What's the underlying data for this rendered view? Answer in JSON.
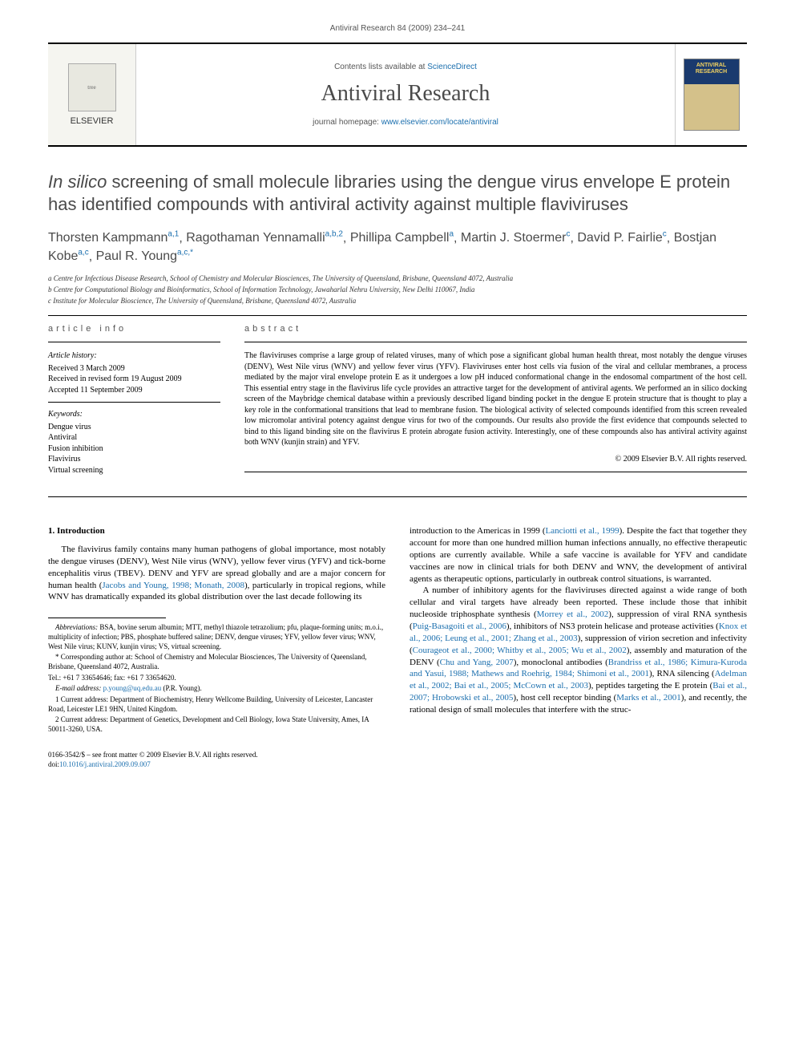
{
  "running_head": "Antiviral Research 84 (2009) 234–241",
  "masthead": {
    "publisher": "ELSEVIER",
    "contents_prefix": "Contents lists available at ",
    "contents_link": "ScienceDirect",
    "journal": "Antiviral Research",
    "homepage_prefix": "journal homepage: ",
    "homepage_url": "www.elsevier.com/locate/antiviral",
    "cover_text": "ANTIVIRAL RESEARCH"
  },
  "title": {
    "italic_lead": "In silico",
    "rest": " screening of small molecule libraries using the dengue virus envelope E protein has identified compounds with antiviral activity against multiple flaviviruses"
  },
  "authors": [
    {
      "name": "Thorsten Kampmann",
      "sup": "a,1"
    },
    {
      "name": "Ragothaman Yennamalli",
      "sup": "a,b,2"
    },
    {
      "name": "Phillipa Campbell",
      "sup": "a"
    },
    {
      "name": "Martin J. Stoermer",
      "sup": "c"
    },
    {
      "name": "David P. Fairlie",
      "sup": "c"
    },
    {
      "name": "Bostjan Kobe",
      "sup": "a,c"
    },
    {
      "name": "Paul R. Young",
      "sup": "a,c,*"
    }
  ],
  "affiliations": [
    "a Centre for Infectious Disease Research, School of Chemistry and Molecular Biosciences, The University of Queensland, Brisbane, Queensland 4072, Australia",
    "b Centre for Computational Biology and Bioinformatics, School of Information Technology, Jawaharlal Nehru University, New Delhi 110067, India",
    "c Institute for Molecular Bioscience, The University of Queensland, Brisbane, Queensland 4072, Australia"
  ],
  "article_info": {
    "heading": "article info",
    "history_label": "Article history:",
    "history": [
      "Received 3 March 2009",
      "Received in revised form 19 August 2009",
      "Accepted 11 September 2009"
    ],
    "keywords_label": "Keywords:",
    "keywords": [
      "Dengue virus",
      "Antiviral",
      "Fusion inhibition",
      "Flavivirus",
      "Virtual screening"
    ]
  },
  "abstract": {
    "heading": "abstract",
    "text": "The flaviviruses comprise a large group of related viruses, many of which pose a significant global human health threat, most notably the dengue viruses (DENV), West Nile virus (WNV) and yellow fever virus (YFV). Flaviviruses enter host cells via fusion of the viral and cellular membranes, a process mediated by the major viral envelope protein E as it undergoes a low pH induced conformational change in the endosomal compartment of the host cell. This essential entry stage in the flavivirus life cycle provides an attractive target for the development of antiviral agents. We performed an in silico docking screen of the Maybridge chemical database within a previously described ligand binding pocket in the dengue E protein structure that is thought to play a key role in the conformational transitions that lead to membrane fusion. The biological activity of selected compounds identified from this screen revealed low micromolar antiviral potency against dengue virus for two of the compounds. Our results also provide the first evidence that compounds selected to bind to this ligand binding site on the flavivirus E protein abrogate fusion activity. Interestingly, one of these compounds also has antiviral activity against both WNV (kunjin strain) and YFV.",
    "copyright": "© 2009 Elsevier B.V. All rights reserved."
  },
  "body": {
    "section_heading": "1.  Introduction",
    "col1_p1": "The flavivirus family contains many human pathogens of global importance, most notably the dengue viruses (DENV), West Nile virus (WNV), yellow fever virus (YFV) and tick-borne encephalitis virus (TBEV). DENV and YFV are spread globally and are a major concern for human health (",
    "col1_p1_link1": "Jacobs and Young, 1998; Monath, 2008",
    "col1_p1_cont": "), particularly in tropical regions, while WNV has dramatically expanded its global distribution over the last decade following its ",
    "col2_p1": "introduction to the Americas in 1999 (",
    "col2_p1_link1": "Lanciotti et al., 1999",
    "col2_p1_cont": "). Despite the fact that together they account for more than one hundred million human infections annually, no effective therapeutic options are currently available. While a safe vaccine is available for YFV and candidate vaccines are now in clinical trials for both DENV and WNV, the development of antiviral agents as therapeutic options, particularly in outbreak control situations, is warranted.",
    "col2_p2_a": "A number of inhibitory agents for the flaviviruses directed against a wide range of both cellular and viral targets have already been reported. These include those that inhibit nucleoside triphosphate synthesis (",
    "col2_l1": "Morrey et al., 2002",
    "col2_p2_b": "), suppression of viral RNA synthesis (",
    "col2_l2": "Puig-Basagoiti et al., 2006",
    "col2_p2_c": "), inhibitors of NS3 protein helicase and protease activities (",
    "col2_l3": "Knox et al., 2006; Leung et al., 2001; Zhang et al., 2003",
    "col2_p2_d": "), suppression of virion secretion and infectivity (",
    "col2_l4": "Courageot et al., 2000; Whitby et al., 2005; Wu et al., 2002",
    "col2_p2_e": "), assembly and maturation of the DENV (",
    "col2_l5": "Chu and Yang, 2007",
    "col2_p2_f": "), monoclonal antibodies (",
    "col2_l6": "Brandriss et al., 1986; Kimura-Kuroda and Yasui, 1988; Mathews and Roehrig, 1984; Shimoni et al., 2001",
    "col2_p2_g": "), RNA silencing (",
    "col2_l7": "Adelman et al., 2002; Bai et al., 2005; McCown et al., 2003",
    "col2_p2_h": "), peptides targeting the E protein (",
    "col2_l8": "Bai et al., 2007; Hrobowski et al., 2005",
    "col2_p2_i": "), host cell receptor binding (",
    "col2_l9": "Marks et al., 2001",
    "col2_p2_j": "), and recently, the rational design of small molecules that interfere with the struc-"
  },
  "footnotes": {
    "abbrev_label": "Abbreviations:",
    "abbrev": " BSA, bovine serum albumin; MTT, methyl thiazole tetrazolium; pfu, plaque-forming units; m.o.i., multiplicity of infection; PBS, phosphate buffered saline; DENV, dengue viruses; YFV, yellow fever virus; WNV, West Nile virus; KUNV, kunjin virus; VS, virtual screening.",
    "corr": "* Corresponding author at: School of Chemistry and Molecular Biosciences, The University of Queensland, Brisbane, Queensland 4072, Australia.",
    "tel": "Tel.: +61 7 33654646; fax: +61 7 33654620.",
    "email_label": "E-mail address:",
    "email": "p.young@uq.edu.au",
    "email_suffix": " (P.R. Young).",
    "n1": "1 Current address: Department of Biochemistry, Henry Wellcome Building, University of Leicester, Lancaster Road, Leicester LE1 9HN, United Kingdom.",
    "n2": "2 Current address: Department of Genetics, Development and Cell Biology, Iowa State University, Ames, IA 50011-3260, USA."
  },
  "bottom": {
    "line1": "0166-3542/$ – see front matter © 2009 Elsevier B.V. All rights reserved.",
    "doi_prefix": "doi:",
    "doi": "10.1016/j.antiviral.2009.09.007"
  }
}
